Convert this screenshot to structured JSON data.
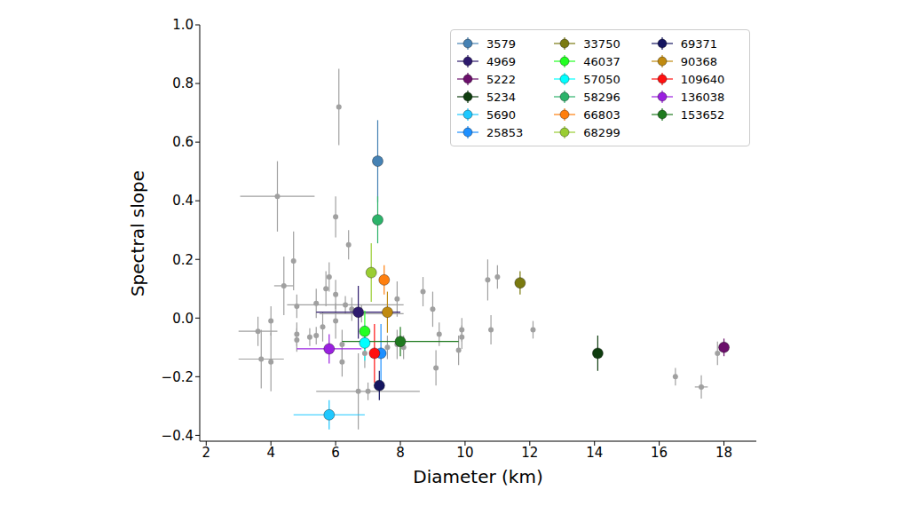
{
  "chart_data": {
    "type": "scatter",
    "x_label": "Diameter (km)",
    "y_label": "Spectral slope",
    "xlim": [
      1.8,
      19.0
    ],
    "ylim": [
      -0.42,
      1.0
    ],
    "xticks": [
      2,
      4,
      6,
      8,
      10,
      12,
      14,
      16,
      18
    ],
    "yticks": [
      {
        "value": -0.4,
        "label": "−0.4"
      },
      {
        "value": -0.2,
        "label": "−0.2"
      },
      {
        "value": 0.0,
        "label": "0.0"
      },
      {
        "value": 0.2,
        "label": "0.2"
      },
      {
        "value": 0.4,
        "label": "0.4"
      },
      {
        "value": 0.6,
        "label": "0.6"
      },
      {
        "value": 0.8,
        "label": "0.8"
      },
      {
        "value": 1.0,
        "label": "1.0"
      }
    ],
    "grid": false,
    "legend": "upper right",
    "marker": "circle",
    "series": [
      {
        "color": "#a0a0a0",
        "x": [
          4.2,
          6.1,
          6.0,
          6.4,
          4.7,
          4.4,
          5.8,
          5.7,
          6.0,
          5.4,
          4.8,
          4.0,
          3.6,
          3.7,
          4.0,
          4.8,
          4.8,
          5.2,
          5.4,
          5.6,
          6.0,
          6.2,
          6.2,
          6.5,
          6.7,
          6.9,
          7.9,
          7.9,
          7.6,
          8.1,
          8.7,
          9.0,
          9.2,
          9.1,
          9.8,
          9.9,
          9.9,
          10.7,
          11.0,
          10.8,
          12.1,
          16.5,
          17.3,
          17.8,
          7.0,
          6.3,
          6.8
        ],
        "values": [
          0.415,
          0.72,
          0.345,
          0.25,
          0.195,
          0.11,
          0.14,
          0.1,
          0.08,
          0.05,
          0.04,
          -0.01,
          -0.045,
          -0.14,
          -0.15,
          -0.055,
          -0.075,
          -0.065,
          -0.06,
          -0.03,
          -0.01,
          -0.09,
          -0.15,
          0.03,
          -0.25,
          -0.12,
          -0.09,
          0.065,
          -0.1,
          -0.1,
          0.09,
          0.03,
          -0.055,
          -0.17,
          -0.11,
          -0.04,
          -0.065,
          0.13,
          0.14,
          -0.04,
          -0.04,
          -0.2,
          -0.235,
          -0.12,
          -0.25,
          0.045,
          0.015
        ],
        "y_error": [
          0.12,
          0.13,
          0.07,
          0.05,
          0.1,
          0.1,
          0.05,
          0.06,
          0.05,
          0.05,
          0.04,
          0.05,
          0.05,
          0.1,
          0.1,
          0.04,
          0.04,
          0.03,
          0.03,
          0.05,
          0.06,
          0.05,
          0.05,
          0.04,
          0.13,
          0.05,
          0.05,
          0.06,
          0.04,
          0.04,
          0.05,
          0.06,
          0.04,
          0.06,
          0.05,
          0.04,
          0.04,
          0.07,
          0.04,
          0.05,
          0.03,
          0.03,
          0.04,
          0.04,
          0.03,
          0.03,
          0.03
        ],
        "x_error": [
          1.15,
          0,
          0,
          0,
          0,
          0.3,
          0,
          0,
          0,
          0,
          0,
          0,
          0.6,
          0.7,
          0,
          0,
          0,
          0,
          0,
          0,
          0,
          0,
          0,
          0,
          0,
          0,
          0,
          0,
          0,
          0,
          0,
          0,
          0,
          0,
          0,
          0,
          0,
          0,
          0,
          0,
          0,
          0,
          0.2,
          0,
          1.6,
          1.8,
          1.3
        ]
      },
      {
        "name": "3579",
        "color": "#4682b4",
        "x": [
          7.3
        ],
        "values": [
          0.535
        ],
        "y_error": [
          0.14
        ],
        "x_error": [
          0
        ]
      },
      {
        "name": "4969",
        "color": "#2e1a6e",
        "x": [
          6.7
        ],
        "values": [
          0.02
        ],
        "y_error": [
          0.09
        ],
        "x_error": [
          1.3
        ]
      },
      {
        "name": "5222",
        "color": "#6b0f6b",
        "x": [
          18.0
        ],
        "values": [
          -0.1
        ],
        "y_error": [
          0.03
        ],
        "x_error": [
          0
        ]
      },
      {
        "name": "5234",
        "color": "#0f3d0f",
        "x": [
          14.1
        ],
        "values": [
          -0.12
        ],
        "y_error": [
          0.06
        ],
        "x_error": [
          0
        ]
      },
      {
        "name": "5690",
        "color": "#1ec8ff",
        "x": [
          5.8
        ],
        "values": [
          -0.33
        ],
        "y_error": [
          0.05
        ],
        "x_error": [
          1.1
        ]
      },
      {
        "name": "25853",
        "color": "#1e90ff",
        "x": [
          7.4
        ],
        "values": [
          -0.12
        ],
        "y_error": [
          0.1
        ],
        "x_error": [
          0
        ]
      },
      {
        "name": "33750",
        "color": "#7a7a10",
        "x": [
          11.7
        ],
        "values": [
          0.12
        ],
        "y_error": [
          0.04
        ],
        "x_error": [
          0
        ]
      },
      {
        "name": "46037",
        "color": "#22ff22",
        "x": [
          6.9
        ],
        "values": [
          -0.045
        ],
        "y_error": [
          0.07
        ],
        "x_error": [
          0
        ]
      },
      {
        "name": "57050",
        "color": "#00ffff",
        "x": [
          6.9
        ],
        "values": [
          -0.085
        ],
        "y_error": [
          0.06
        ],
        "x_error": [
          0
        ]
      },
      {
        "name": "58296",
        "color": "#2cb36a",
        "x": [
          7.3
        ],
        "values": [
          0.335
        ],
        "y_error": [
          0.08
        ],
        "x_error": [
          0
        ]
      },
      {
        "name": "66803",
        "color": "#ff7f0e",
        "x": [
          7.5
        ],
        "values": [
          0.13
        ],
        "y_error": [
          0.05
        ],
        "x_error": [
          0
        ]
      },
      {
        "name": "68299",
        "color": "#9acd32",
        "x": [
          7.1
        ],
        "values": [
          0.155
        ],
        "y_error": [
          0.1
        ],
        "x_error": [
          0
        ]
      },
      {
        "name": "69371",
        "color": "#151560",
        "x": [
          7.35
        ],
        "values": [
          -0.23
        ],
        "y_error": [
          0.05
        ],
        "x_error": [
          0
        ]
      },
      {
        "name": "90368",
        "color": "#c08a10",
        "x": [
          7.6
        ],
        "values": [
          0.02
        ],
        "y_error": [
          0.07
        ],
        "x_error": [
          0
        ]
      },
      {
        "name": "109640",
        "color": "#ff1010",
        "x": [
          7.2
        ],
        "values": [
          -0.12
        ],
        "y_error": [
          0.1
        ],
        "x_error": [
          0
        ]
      },
      {
        "name": "136038",
        "color": "#9a1fe0",
        "x": [
          5.8
        ],
        "values": [
          -0.105
        ],
        "y_error": [
          0.05
        ],
        "x_error": [
          1.0
        ]
      },
      {
        "name": "153652",
        "color": "#1f7a1f",
        "x": [
          8.0
        ],
        "values": [
          -0.08
        ],
        "y_error": [
          0.05
        ],
        "x_error": [
          1.8
        ]
      }
    ]
  }
}
